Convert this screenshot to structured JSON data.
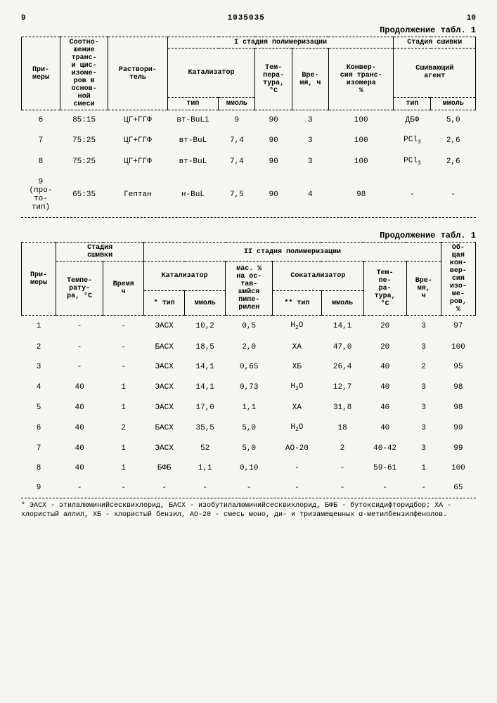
{
  "header": {
    "page_left": "9",
    "doc_number": "1035035",
    "page_right": "10",
    "continuation1": "Продолжение табл. 1",
    "continuation2": "Продолжение табл. 1"
  },
  "table1": {
    "headers": {
      "col1": "При-\nмеры",
      "col2": "Соотно-\nшение\nтранс-\nи цис-\nизоме-\nров в\nоснов-\nной\nсмеси",
      "col3": "Раствори-\nтель",
      "stage1": "I стадия полимеризации",
      "catalyst": "Катализатор",
      "cat_type": "тип",
      "cat_mmol": "ммоль",
      "temp": "Тем-\nпера-\nтура,\n°С",
      "time": "Вре-\nмя, ч",
      "conv": "Конвер-\nсия транс-\nизомера\n%",
      "stage_link": "Стадия сшивки",
      "agent": "Сшивающий\nагент",
      "agent_type": "тип",
      "agent_mmol": "ммоль"
    },
    "rows": [
      {
        "n": "6",
        "ratio": "85:15",
        "solv": "ЦГ+ГГФ",
        "ctype": "вт-BuLi",
        "cmmol": "9",
        "temp": "90",
        "time": "3",
        "conv": "100",
        "atype": "ДБФ",
        "ammol": "5,0"
      },
      {
        "n": "7",
        "ratio": "75:25",
        "solv": "ЦГ+ГГФ",
        "ctype": "вт-BuL",
        "cmmol": "7,4",
        "temp": "90",
        "time": "3",
        "conv": "100",
        "atype": "PCl₃",
        "ammol": "2,6"
      },
      {
        "n": "8",
        "ratio": "75:25",
        "solv": "ЦГ+ГГФ",
        "ctype": "вт-BuL",
        "cmmol": "7,4",
        "temp": "90",
        "time": "3",
        "conv": "100",
        "atype": "PCl₃",
        "ammol": "2,6"
      },
      {
        "n": "9\n(про-\nто-\nтип)",
        "ratio": "65:35",
        "solv": "Гептан",
        "ctype": "н-BuL",
        "cmmol": "7,5",
        "temp": "90",
        "time": "4",
        "conv": "98",
        "atype": "-",
        "ammol": "-"
      }
    ]
  },
  "table2": {
    "headers": {
      "col1": "При-\nмеры",
      "link_stage": "Стадия\nсшивки",
      "link_temp": "Темпе-\nрату-\nра, °С",
      "link_time": "Время\nч",
      "stage2": "II стадия полимеризации",
      "catalyst": "Катализатор",
      "cat_type": "* тип",
      "cat_mmol": "ммоль",
      "mass": "мас. %\nна ос-\nтав-\nшийся\nпипе-\nрилен",
      "cocat": "Сокатализатор",
      "cocat_type": "** тип",
      "cocat_mmol": "ммоль",
      "temp": "Тем-\nпе-\nра-\nтура,\n°С",
      "time": "Вре-\nмя,\nч",
      "total": "Об-\nщая\nкон-\nвер-\nсия\nизо-\nме-\nров,\n%"
    },
    "rows": [
      {
        "n": "1",
        "lt": "-",
        "ltm": "-",
        "ct": "ЭАСХ",
        "cm": "10,2",
        "mass": "0,5",
        "cct": "H₂O",
        "ccm": "14,1",
        "temp": "20",
        "time": "3",
        "tot": "97"
      },
      {
        "n": "2",
        "lt": "-",
        "ltm": "-",
        "ct": "БАСХ",
        "cm": "18,5",
        "mass": "2,0",
        "cct": "ХА",
        "ccm": "47,0",
        "temp": "20",
        "time": "3",
        "tot": "100"
      },
      {
        "n": "3",
        "lt": "-",
        "ltm": "-",
        "ct": "ЭАСХ",
        "cm": "14,1",
        "mass": "0,65",
        "cct": "ХБ",
        "ccm": "26,4",
        "temp": "40",
        "time": "2",
        "tot": "95"
      },
      {
        "n": "4",
        "lt": "40",
        "ltm": "1",
        "ct": "ЭАСХ",
        "cm": "14,1",
        "mass": "0,73",
        "cct": "H₂O",
        "ccm": "12,7",
        "temp": "40",
        "time": "3",
        "tot": "98"
      },
      {
        "n": "5",
        "lt": "40",
        "ltm": "1",
        "ct": "ЭАСХ",
        "cm": "17,0",
        "mass": "1,1",
        "cct": "ХА",
        "ccm": "31,8",
        "temp": "40",
        "time": "3",
        "tot": "98"
      },
      {
        "n": "6",
        "lt": "40",
        "ltm": "2",
        "ct": "БАСХ",
        "cm": "35,5",
        "mass": "5,0",
        "cct": "H₂O",
        "ccm": "18",
        "temp": "40",
        "time": "3",
        "tot": "99"
      },
      {
        "n": "7",
        "lt": "40",
        "ltm": "1",
        "ct": "ЭАСХ",
        "cm": "52",
        "mass": "5,0",
        "cct": "АО-20",
        "ccm": "2",
        "temp": "40-42",
        "time": "3",
        "tot": "99"
      },
      {
        "n": "8",
        "lt": "40",
        "ltm": "1",
        "ct": "БФБ",
        "cm": "1,1",
        "mass": "0,10",
        "cct": "-",
        "ccm": "-",
        "temp": "59-61",
        "time": "1",
        "tot": "100"
      },
      {
        "n": "9",
        "lt": "-",
        "ltm": "-",
        "ct": "-",
        "cm": "-",
        "mass": "-",
        "cct": "-",
        "ccm": "-",
        "temp": "-",
        "time": "-",
        "tot": "65"
      }
    ]
  },
  "footnote": "* ЭАСХ - этилалюминийсесквихлорид, БАСХ - изобутилалюминийсесквихлорид, БФБ - бутоксидифторидбор; ХА - хлористый аллил, ХБ - хлористый бензил, АО-20 - смесь моно, ди- и тризамещенных α-метилбензилфенолов."
}
